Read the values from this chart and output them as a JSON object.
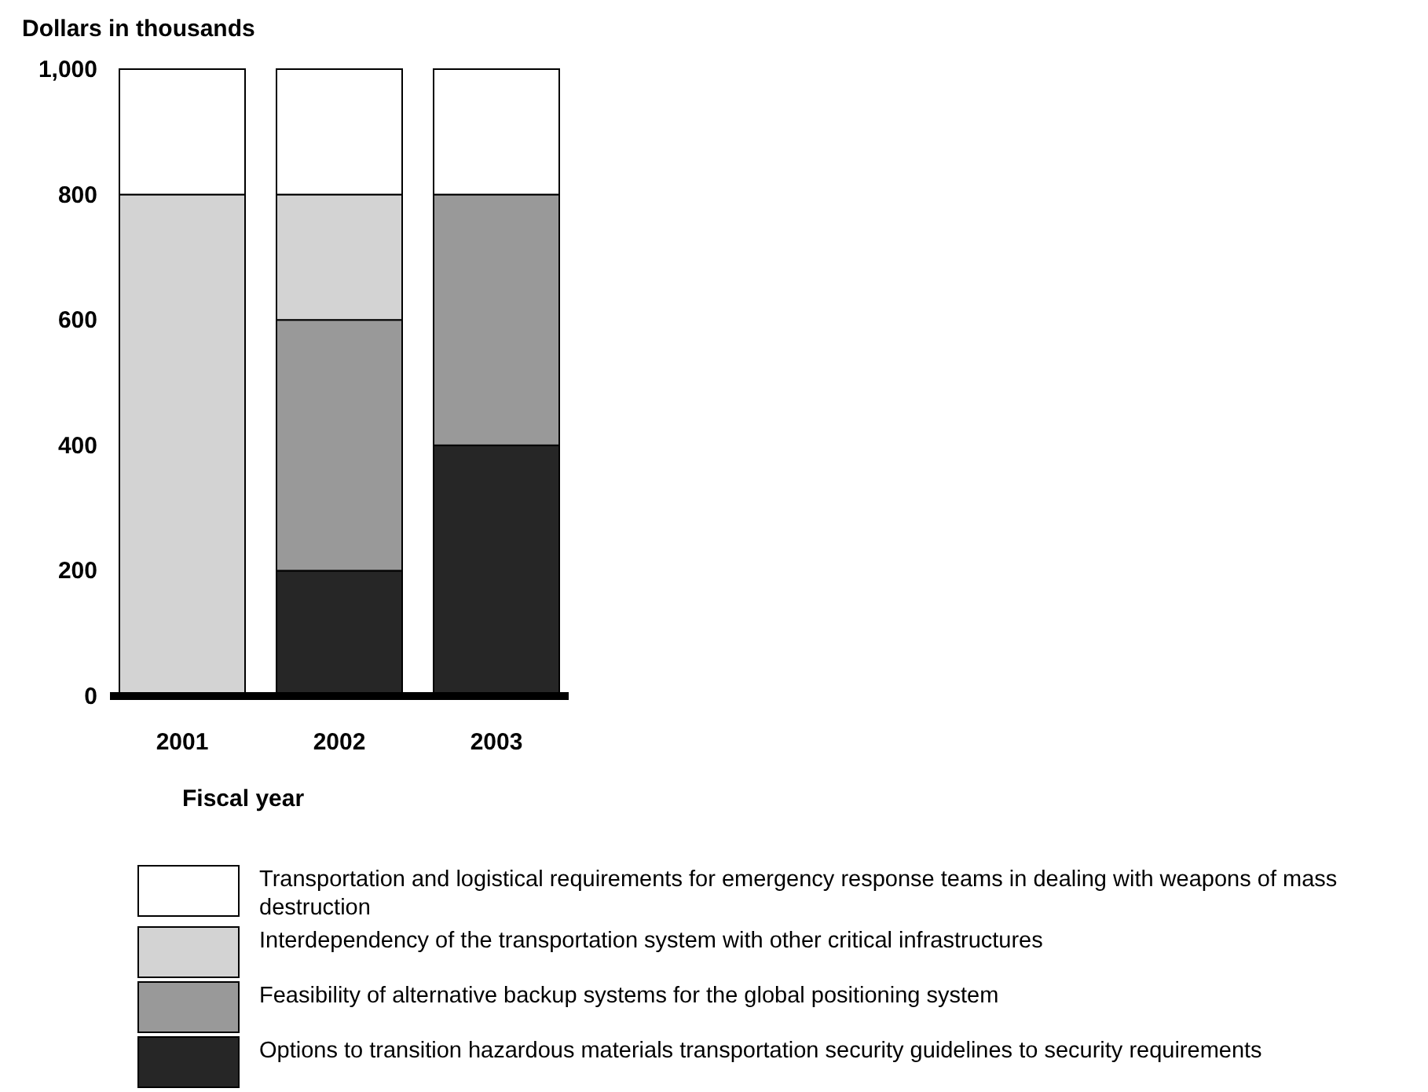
{
  "chart_data": {
    "type": "bar",
    "ylabel": "Dollars in thousands",
    "xlabel": "Fiscal year",
    "categories": [
      "2001",
      "2002",
      "2003"
    ],
    "stacked": true,
    "legend": "bottom",
    "ylim": [
      0,
      1000
    ],
    "yticks": [
      0,
      200,
      400,
      600,
      800,
      {
        "value": 1000,
        "label": "1,000"
      }
    ],
    "series": [
      {
        "name": "Options to transition hazardous materials transportation security guidelines to security requirements",
        "color": "#262626",
        "values": [
          0,
          200,
          400
        ]
      },
      {
        "name": "Feasibility of alternative backup systems for the global positioning system",
        "color": "#999999",
        "values": [
          0,
          400,
          400
        ]
      },
      {
        "name": "Interdependency of the transportation system with other critical infrastructures",
        "color": "#d3d3d3",
        "values": [
          800,
          200,
          0
        ]
      },
      {
        "name": "Transportation and logistical requirements for emergency response teams in dealing with weapons of mass destruction",
        "color": "#ffffff",
        "values": [
          200,
          200,
          200
        ]
      }
    ]
  }
}
